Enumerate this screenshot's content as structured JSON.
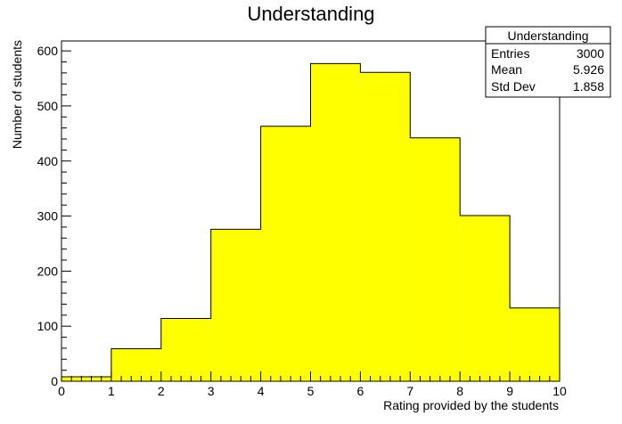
{
  "chart_data": {
    "type": "bar",
    "title": "Understanding",
    "xlabel": "Rating provided by the students",
    "ylabel": "Number of students",
    "bin_edges": [
      0,
      1,
      2,
      3,
      4,
      5,
      6,
      7,
      8,
      9,
      10
    ],
    "values": [
      8,
      59,
      114,
      276,
      463,
      577,
      561,
      442,
      301,
      133
    ],
    "xlim": [
      0,
      10
    ],
    "ylim": [
      0,
      618
    ],
    "x_ticks": [
      "0",
      "1",
      "2",
      "3",
      "4",
      "5",
      "6",
      "7",
      "8",
      "9",
      "10"
    ],
    "y_ticks": [
      0,
      100,
      200,
      300,
      400,
      500,
      600
    ],
    "grid": false,
    "fill_color": "#ffff00",
    "stats": {
      "title": "Understanding",
      "rows": [
        {
          "label": "Entries",
          "value": "3000"
        },
        {
          "label": "Mean",
          "value": "5.926"
        },
        {
          "label": "Std Dev",
          "value": "1.858"
        }
      ]
    }
  }
}
